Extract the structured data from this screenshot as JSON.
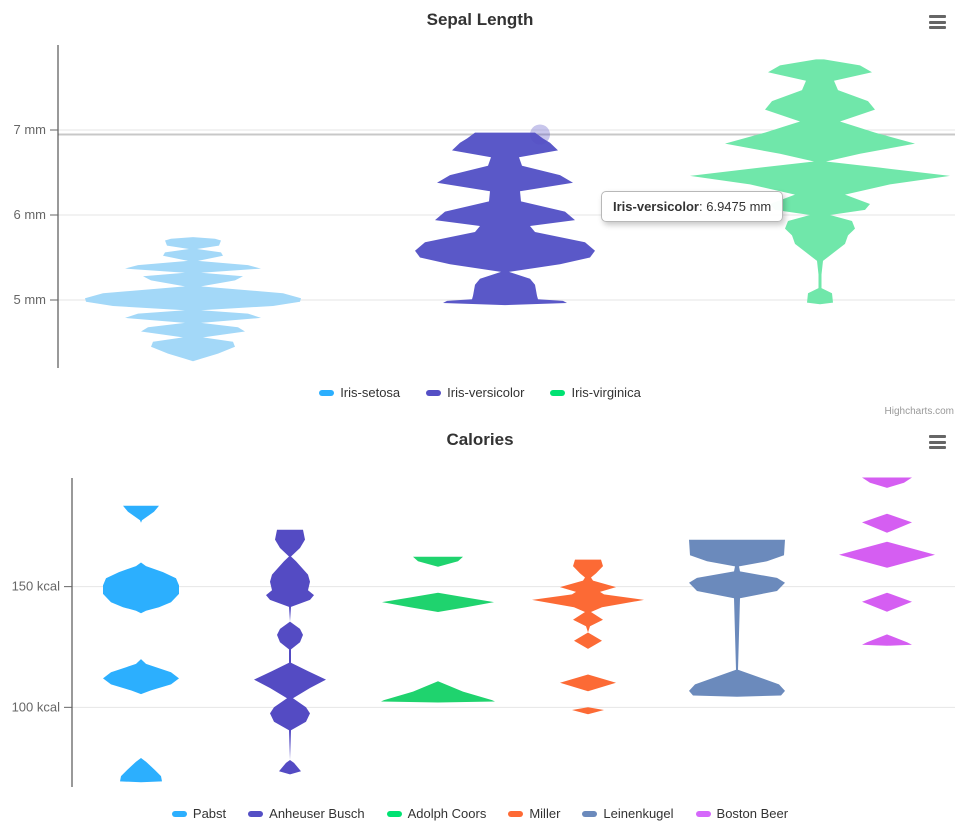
{
  "charts": [
    {
      "title": "Sepal Length",
      "menu_icon": "hamburger-menu-icon",
      "credit": "Highcharts.com",
      "tooltip": {
        "label": "Iris-versicolor",
        "value_text": ": 6.9475 mm"
      },
      "chart_data": {
        "type": "violin",
        "unit": "mm",
        "ylim": [
          4.2,
          8.0
        ],
        "grid": true,
        "legend_position": "bottom",
        "yticks": [
          {
            "value": 7,
            "label": "7 mm"
          },
          {
            "value": 6,
            "label": "6 mm"
          },
          {
            "value": 5,
            "label": "5 mm"
          }
        ],
        "crosshair_value": 6.9475,
        "hover_point": {
          "series": "Iris-versicolor",
          "value": 6.9475,
          "marker_color": "#544fc5"
        },
        "series": [
          {
            "name": "Iris-setosa",
            "color": "#2caffe",
            "fill": "#a3d8f8",
            "range": [
              4.3,
              5.75
            ],
            "profile": [
              [
                5.74,
                0
              ],
              [
                5.72,
                22
              ],
              [
                5.7,
                28
              ],
              [
                5.64,
                26
              ],
              [
                5.6,
                4
              ],
              [
                5.56,
                28
              ],
              [
                5.52,
                30
              ],
              [
                5.46,
                5
              ],
              [
                5.41,
                55
              ],
              [
                5.37,
                68
              ],
              [
                5.32,
                8
              ],
              [
                5.28,
                50
              ],
              [
                5.23,
                42
              ],
              [
                5.16,
                8
              ],
              [
                5.08,
                90
              ],
              [
                5.02,
                108
              ],
              [
                4.98,
                107
              ],
              [
                4.93,
                80
              ],
              [
                4.88,
                8
              ],
              [
                4.84,
                55
              ],
              [
                4.79,
                68
              ],
              [
                4.73,
                8
              ],
              [
                4.68,
                45
              ],
              [
                4.63,
                52
              ],
              [
                4.56,
                10
              ],
              [
                4.51,
                40
              ],
              [
                4.45,
                42
              ],
              [
                4.37,
                25
              ],
              [
                4.31,
                8
              ],
              [
                4.28,
                0
              ]
            ]
          },
          {
            "name": "Iris-versicolor",
            "color": "#544fc5",
            "fill": "#5a58c8",
            "range": [
              4.9,
              7.0
            ],
            "profile": [
              [
                6.97,
                30
              ],
              [
                6.9,
                38
              ],
              [
                6.85,
                45
              ],
              [
                6.76,
                53
              ],
              [
                6.68,
                14
              ],
              [
                6.58,
                17
              ],
              [
                6.47,
                55
              ],
              [
                6.38,
                68
              ],
              [
                6.28,
                15
              ],
              [
                6.16,
                16
              ],
              [
                6.04,
                60
              ],
              [
                5.94,
                70
              ],
              [
                5.87,
                25
              ],
              [
                5.8,
                30
              ],
              [
                5.68,
                80
              ],
              [
                5.58,
                90
              ],
              [
                5.5,
                85
              ],
              [
                5.42,
                55
              ],
              [
                5.33,
                4
              ],
              [
                5.25,
                25
              ],
              [
                5.18,
                30
              ],
              [
                5.05,
                32
              ],
              [
                5.01,
                33
              ],
              [
                4.99,
                58
              ],
              [
                4.965,
                62
              ],
              [
                4.94,
                0
              ]
            ]
          },
          {
            "name": "Iris-virginica",
            "color": "#00e272",
            "fill": "#70e7aa",
            "range": [
              4.9,
              7.9
            ],
            "profile": [
              [
                7.83,
                4
              ],
              [
                7.76,
                40
              ],
              [
                7.68,
                52
              ],
              [
                7.58,
                14
              ],
              [
                7.47,
                18
              ],
              [
                7.34,
                48
              ],
              [
                7.24,
                55
              ],
              [
                7.1,
                20
              ],
              [
                6.97,
                55
              ],
              [
                6.84,
                95
              ],
              [
                6.72,
                40
              ],
              [
                6.63,
                6
              ],
              [
                6.56,
                58
              ],
              [
                6.46,
                130
              ],
              [
                6.36,
                70
              ],
              [
                6.24,
                25
              ],
              [
                6.13,
                50
              ],
              [
                6.06,
                45
              ],
              [
                6.0,
                10
              ],
              [
                5.93,
                32
              ],
              [
                5.84,
                35
              ],
              [
                5.76,
                28
              ],
              [
                5.66,
                25
              ],
              [
                5.56,
                14
              ],
              [
                5.46,
                3
              ],
              [
                5.3,
                1.5
              ],
              [
                5.14,
                1.5
              ],
              [
                5.08,
                12
              ],
              [
                4.97,
                13
              ],
              [
                4.95,
                0
              ]
            ]
          }
        ]
      }
    },
    {
      "title": "Calories",
      "menu_icon": "hamburger-menu-icon",
      "chart_data": {
        "type": "violin",
        "unit": "kcal",
        "ylim": [
          67,
          195
        ],
        "grid": true,
        "legend_position": "bottom",
        "yticks": [
          {
            "value": 150,
            "label": "150 kcal"
          },
          {
            "value": 100,
            "label": "100 kcal"
          }
        ],
        "series": [
          {
            "name": "Pabst",
            "color": "#2caffe",
            "fill": "#2caffe",
            "range": [
              69,
              184
            ],
            "profile": [
              [
                183.5,
                18
              ],
              [
                181,
                13
              ],
              [
                177.5,
                1
              ],
              [
                176.5,
                0
              ],
              [
                160,
                0
              ],
              [
                158.5,
                5
              ],
              [
                156,
                22
              ],
              [
                153.5,
                35
              ],
              [
                150.5,
                38
              ],
              [
                147,
                38
              ],
              [
                143.5,
                30
              ],
              [
                141.5,
                18
              ],
              [
                140,
                5
              ],
              [
                139,
                0
              ],
              [
                120,
                0
              ],
              [
                118,
                5
              ],
              [
                114.5,
                30
              ],
              [
                112,
                38
              ],
              [
                109.5,
                30
              ],
              [
                107,
                10
              ],
              [
                105.5,
                0
              ],
              [
                79,
                0
              ],
              [
                77.5,
                5
              ],
              [
                74,
                14
              ],
              [
                71.5,
                20
              ],
              [
                69.3,
                21
              ],
              [
                69,
                0
              ]
            ]
          },
          {
            "name": "Anheuser Busch",
            "color": "#544fc5",
            "fill": "#544bc3",
            "range": [
              72,
              174
            ],
            "profile": [
              [
                173.6,
                13
              ],
              [
                169.5,
                15
              ],
              [
                166,
                10
              ],
              [
                162.5,
                1
              ],
              [
                160.5,
                6
              ],
              [
                155,
                18
              ],
              [
                152,
                20
              ],
              [
                148.5,
                18
              ],
              [
                146.5,
                24
              ],
              [
                144.5,
                20
              ],
              [
                141.6,
                1
              ],
              [
                135.5,
                0
              ],
              [
                132.5,
                10
              ],
              [
                130,
                13
              ],
              [
                127,
                10
              ],
              [
                124,
                1
              ],
              [
                118.5,
                1
              ],
              [
                115,
                18
              ],
              [
                111.5,
                36
              ],
              [
                108,
                20
              ],
              [
                103.8,
                3
              ],
              [
                100,
                16
              ],
              [
                97.5,
                20
              ],
              [
                94,
                16
              ],
              [
                90.5,
                1
              ],
              [
                78.2,
                0
              ],
              [
                77,
                4
              ],
              [
                73.5,
                11
              ],
              [
                72.2,
                0
              ]
            ]
          },
          {
            "name": "Adolph Coors",
            "color": "#00e272",
            "fill": "#1fd36e",
            "range": [
              102,
              163
            ],
            "profile": [
              [
                162.4,
                25
              ],
              [
                160.5,
                20
              ],
              [
                158.2,
                0
              ],
              [
                147.5,
                0
              ],
              [
                145.5,
                28
              ],
              [
                143.6,
                56
              ],
              [
                141.5,
                28
              ],
              [
                139.5,
                0
              ],
              [
                110.8,
                0
              ],
              [
                106.5,
                25
              ],
              [
                103,
                54
              ],
              [
                102.4,
                57
              ],
              [
                102,
                0
              ]
            ]
          },
          {
            "name": "Miller",
            "color": "#fe6a35",
            "fill": "#fc6a35",
            "range": [
              97,
              162
            ],
            "profile": [
              [
                161.2,
                13
              ],
              [
                158.5,
                15
              ],
              [
                155.5,
                8
              ],
              [
                153.8,
                3
              ],
              [
                152.5,
                5
              ],
              [
                149.8,
                28
              ],
              [
                147.8,
                12
              ],
              [
                146.8,
                16
              ],
              [
                144.5,
                56
              ],
              [
                141.5,
                14
              ],
              [
                139.5,
                3
              ],
              [
                136.3,
                15
              ],
              [
                133.6,
                2
              ],
              [
                131,
                0
              ],
              [
                127.6,
                14
              ],
              [
                124.2,
                0
              ],
              [
                113.6,
                0
              ],
              [
                110.2,
                28
              ],
              [
                106.7,
                0
              ],
              [
                100,
                0
              ],
              [
                98.9,
                16
              ],
              [
                97.1,
                0
              ]
            ]
          },
          {
            "name": "Leinenkugel",
            "color": "#6b8abc",
            "fill": "#6b8abc",
            "range": [
              104,
              170
            ],
            "profile": [
              [
                169.4,
                48
              ],
              [
                163,
                47
              ],
              [
                160.5,
                30
              ],
              [
                158.4,
                2
              ],
              [
                156.3,
                3
              ],
              [
                153.6,
                40
              ],
              [
                151.6,
                48
              ],
              [
                148.2,
                40
              ],
              [
                145.2,
                3
              ],
              [
                115.6,
                1
              ],
              [
                109.5,
                42
              ],
              [
                106.8,
                48
              ],
              [
                104.9,
                44
              ],
              [
                104.4,
                0
              ]
            ]
          },
          {
            "name": "Boston Beer",
            "color": "#d568fb",
            "fill": "#d55ef2",
            "range": [
              125,
              196
            ],
            "profile": [
              [
                195.2,
                25
              ],
              [
                193,
                17
              ],
              [
                190.9,
                0
              ],
              [
                180.2,
                0
              ],
              [
                176.6,
                25
              ],
              [
                172.3,
                0
              ],
              [
                168.6,
                0
              ],
              [
                163.2,
                48
              ],
              [
                157.8,
                0
              ],
              [
                147.5,
                0
              ],
              [
                143.7,
                25
              ],
              [
                139.6,
                0
              ],
              [
                130.2,
                0
              ],
              [
                127,
                20
              ],
              [
                125.9,
                25
              ],
              [
                125.5,
                0
              ]
            ]
          }
        ]
      }
    }
  ]
}
